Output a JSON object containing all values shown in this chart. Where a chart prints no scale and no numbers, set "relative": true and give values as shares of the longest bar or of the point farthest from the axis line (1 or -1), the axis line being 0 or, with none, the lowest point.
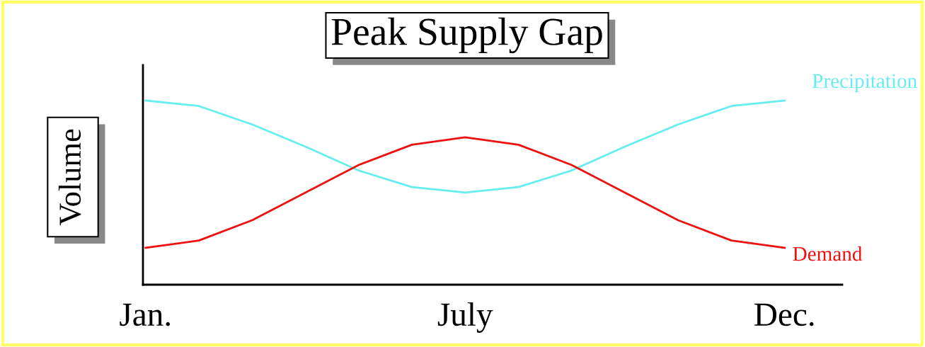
{
  "chart_data": {
    "type": "line",
    "title": "Peak Supply Gap",
    "ylabel": "Volume",
    "relative": true,
    "tick_labels": "x",
    "categories": [
      "Jan.",
      null,
      null,
      null,
      null,
      null,
      "July",
      null,
      null,
      null,
      null,
      null,
      "Dec."
    ],
    "series": [
      {
        "name": "Precipitation",
        "color": "#66eeee",
        "values": [
          1,
          0.97,
          0.87,
          0.75,
          0.62,
          0.53,
          0.5,
          0.53,
          0.62,
          0.75,
          0.87,
          0.97,
          1
        ]
      },
      {
        "name": "Demand",
        "color": "#ee1111",
        "values": [
          0.2,
          0.24,
          0.35,
          0.5,
          0.65,
          0.76,
          0.8,
          0.76,
          0.65,
          0.5,
          0.35,
          0.24,
          0.2
        ]
      }
    ]
  }
}
